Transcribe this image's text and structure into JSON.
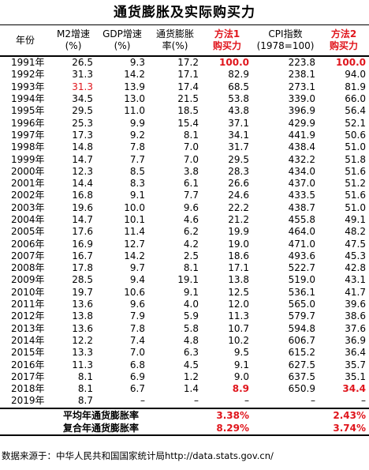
{
  "title": "通货膨胀及实际购买力",
  "headers": [
    {
      "line1": "年份",
      "line2": ""
    },
    {
      "line1": "M2增速",
      "line2": "(%)"
    },
    {
      "line1": "GDP增速",
      "line2": "(%)"
    },
    {
      "line1": "通货膨胀",
      "line2": "率(%)"
    },
    {
      "line1": "方法1",
      "line2": "购买力"
    },
    {
      "line1": "CPI指数",
      "line2": "(1978=100)"
    },
    {
      "line1": "方法2",
      "line2": "购买力"
    }
  ],
  "accent_color": "#e0151c",
  "rows": [
    {
      "year": "1991年",
      "m2": "26.5",
      "gdp": "9.3",
      "inflation": "17.2",
      "m1": "100.0",
      "cpi": "223.8",
      "m2p": "100.0"
    },
    {
      "year": "1992年",
      "m2": "31.3",
      "gdp": "14.2",
      "inflation": "17.1",
      "m1": "82.9",
      "cpi": "238.1",
      "m2p": "94.0"
    },
    {
      "year": "1993年",
      "m2": "31.3",
      "gdp": "13.9",
      "inflation": "17.4",
      "m1": "68.5",
      "cpi": "273.1",
      "m2p": "81.9"
    },
    {
      "year": "1994年",
      "m2": "34.5",
      "gdp": "13.0",
      "inflation": "21.5",
      "m1": "53.8",
      "cpi": "339.0",
      "m2p": "66.0"
    },
    {
      "year": "1995年",
      "m2": "29.5",
      "gdp": "11.0",
      "inflation": "18.5",
      "m1": "43.8",
      "cpi": "396.9",
      "m2p": "56.4"
    },
    {
      "year": "1996年",
      "m2": "25.3",
      "gdp": "9.9",
      "inflation": "15.4",
      "m1": "37.1",
      "cpi": "429.9",
      "m2p": "52.1"
    },
    {
      "year": "1997年",
      "m2": "17.3",
      "gdp": "9.2",
      "inflation": "8.1",
      "m1": "34.1",
      "cpi": "441.9",
      "m2p": "50.6"
    },
    {
      "year": "1998年",
      "m2": "14.8",
      "gdp": "7.8",
      "inflation": "7.0",
      "m1": "31.7",
      "cpi": "438.4",
      "m2p": "51.0"
    },
    {
      "year": "1999年",
      "m2": "14.7",
      "gdp": "7.7",
      "inflation": "7.0",
      "m1": "29.5",
      "cpi": "432.2",
      "m2p": "51.8"
    },
    {
      "year": "2000年",
      "m2": "12.3",
      "gdp": "8.5",
      "inflation": "3.8",
      "m1": "28.3",
      "cpi": "434.0",
      "m2p": "51.6"
    },
    {
      "year": "2001年",
      "m2": "14.4",
      "gdp": "8.3",
      "inflation": "6.1",
      "m1": "26.6",
      "cpi": "437.0",
      "m2p": "51.2"
    },
    {
      "year": "2002年",
      "m2": "16.8",
      "gdp": "9.1",
      "inflation": "7.7",
      "m1": "24.6",
      "cpi": "433.5",
      "m2p": "51.6"
    },
    {
      "year": "2003年",
      "m2": "19.6",
      "gdp": "10.0",
      "inflation": "9.6",
      "m1": "22.2",
      "cpi": "438.7",
      "m2p": "51.0"
    },
    {
      "year": "2004年",
      "m2": "14.7",
      "gdp": "10.1",
      "inflation": "4.6",
      "m1": "21.2",
      "cpi": "455.8",
      "m2p": "49.1"
    },
    {
      "year": "2005年",
      "m2": "17.6",
      "gdp": "11.4",
      "inflation": "6.2",
      "m1": "19.9",
      "cpi": "464.0",
      "m2p": "48.2"
    },
    {
      "year": "2006年",
      "m2": "16.9",
      "gdp": "12.7",
      "inflation": "4.2",
      "m1": "19.0",
      "cpi": "471.0",
      "m2p": "47.5"
    },
    {
      "year": "2007年",
      "m2": "16.7",
      "gdp": "14.2",
      "inflation": "2.5",
      "m1": "18.6",
      "cpi": "493.6",
      "m2p": "45.3"
    },
    {
      "year": "2008年",
      "m2": "17.8",
      "gdp": "9.7",
      "inflation": "8.1",
      "m1": "17.1",
      "cpi": "522.7",
      "m2p": "42.8"
    },
    {
      "year": "2009年",
      "m2": "28.5",
      "gdp": "9.4",
      "inflation": "19.1",
      "m1": "13.8",
      "cpi": "519.0",
      "m2p": "43.1"
    },
    {
      "year": "2010年",
      "m2": "19.7",
      "gdp": "10.6",
      "inflation": "9.1",
      "m1": "12.5",
      "cpi": "536.1",
      "m2p": "41.7"
    },
    {
      "year": "2011年",
      "m2": "13.6",
      "gdp": "9.6",
      "inflation": "4.0",
      "m1": "12.0",
      "cpi": "565.0",
      "m2p": "39.6"
    },
    {
      "year": "2012年",
      "m2": "13.8",
      "gdp": "7.9",
      "inflation": "5.9",
      "m1": "11.3",
      "cpi": "579.7",
      "m2p": "38.6"
    },
    {
      "year": "2013年",
      "m2": "13.6",
      "gdp": "7.8",
      "inflation": "5.8",
      "m1": "10.7",
      "cpi": "594.8",
      "m2p": "37.6"
    },
    {
      "year": "2014年",
      "m2": "12.2",
      "gdp": "7.4",
      "inflation": "4.8",
      "m1": "10.2",
      "cpi": "606.7",
      "m2p": "36.9"
    },
    {
      "year": "2015年",
      "m2": "13.3",
      "gdp": "7.0",
      "inflation": "6.3",
      "m1": "9.5",
      "cpi": "615.2",
      "m2p": "36.4"
    },
    {
      "year": "2016年",
      "m2": "11.3",
      "gdp": "6.8",
      "inflation": "4.5",
      "m1": "9.1",
      "cpi": "627.5",
      "m2p": "35.7"
    },
    {
      "year": "2017年",
      "m2": "8.1",
      "gdp": "6.9",
      "inflation": "1.2",
      "m1": "9.0",
      "cpi": "637.5",
      "m2p": "35.1"
    },
    {
      "year": "2018年",
      "m2": "8.1",
      "gdp": "6.7",
      "inflation": "1.4",
      "m1": "8.9",
      "cpi": "650.9",
      "m2p": "34.4"
    },
    {
      "year": "2019年",
      "m2": "8.7",
      "gdp": "–",
      "inflation": "–",
      "m1": "–",
      "cpi": "–",
      "m2p": "–"
    }
  ],
  "summary": [
    {
      "label": "平均年通货膨胀率",
      "m1": "3.38%",
      "m2p": "2.43%"
    },
    {
      "label": "复合年通货膨胀率",
      "m1": "8.29%",
      "m2p": "3.74%"
    }
  ],
  "source": "数据来源于：中华人民共和国国家统计局http://data.stats.gov.cn/"
}
